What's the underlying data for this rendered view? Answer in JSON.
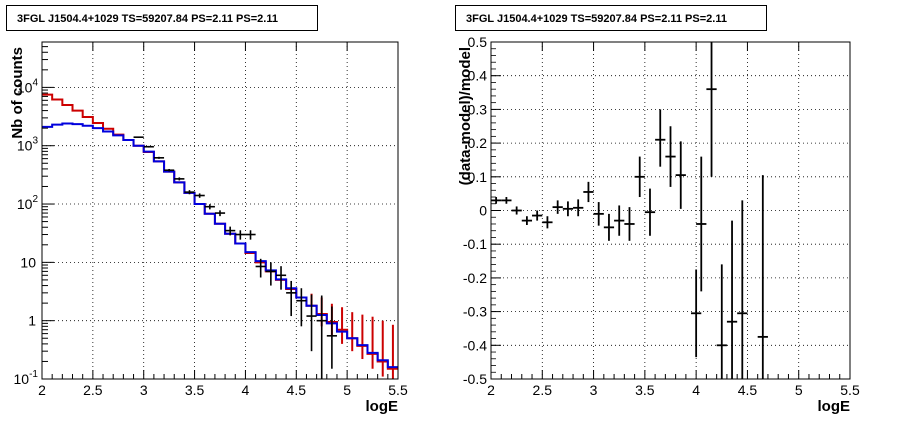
{
  "panels": {
    "left": {
      "title": "3FGL J1504.4+1029 TS=59207.84 PS=2.11 PS=2.11"
    },
    "right": {
      "title": "3FGL J1504.4+1029 TS=59207.84 PS=2.11 PS=2.11"
    }
  },
  "colors": {
    "data": "#000000",
    "model_red": "#cc0000",
    "model_blue": "#0000dd",
    "grid": "#000000"
  },
  "chart_data": [
    {
      "type": "line",
      "xlabel": "logE",
      "ylabel": "Nb of counts",
      "xlim": [
        2,
        5.5
      ],
      "ylim": [
        0.1,
        60000
      ],
      "yscale": "log",
      "grid": true,
      "x_ticks": [
        "2",
        "2.5",
        "3",
        "3.5",
        "4",
        "4.5",
        "5",
        "5.5"
      ],
      "y_ticks": [
        {
          "v": 0.1,
          "label": "10^-1"
        },
        {
          "v": 1,
          "label": "1"
        },
        {
          "v": 10,
          "label": "10"
        },
        {
          "v": 100,
          "label": "10^2"
        },
        {
          "v": 1000,
          "label": "10^3"
        },
        {
          "v": 10000,
          "label": "10^4"
        }
      ],
      "bin_edges": [
        2.0,
        2.1,
        2.2,
        2.3,
        2.4,
        2.5,
        2.6,
        2.7,
        2.8,
        2.9,
        3.0,
        3.1,
        3.2,
        3.3,
        3.4,
        3.5,
        3.6,
        3.7,
        3.8,
        3.9,
        4.0,
        4.1,
        4.2,
        4.3,
        4.4,
        4.5,
        4.6,
        4.7,
        4.8,
        4.9,
        5.0,
        5.1,
        5.2,
        5.3,
        5.4,
        5.5
      ],
      "series": [
        {
          "name": "",
          "style": "model_red",
          "values": [
            7500,
            6200,
            5000,
            4000,
            3100,
            2450,
            1950,
            1550,
            1250,
            1000,
            780,
            540,
            360,
            235,
            155,
            100,
            68,
            46,
            31,
            21,
            14.5,
            10,
            7,
            5,
            3.5,
            2.5,
            1.8,
            1.3,
            0.95,
            0.7,
            0.5,
            0.37,
            0.27,
            0.2,
            0.15
          ],
          "err_lo": [
            0,
            0,
            0,
            0,
            0,
            0,
            0,
            0,
            0,
            0,
            0,
            0,
            0,
            0,
            0,
            0,
            0,
            0,
            0,
            0,
            0,
            0,
            0,
            0,
            0,
            0,
            0,
            0.5,
            0.4,
            0.3,
            0.2,
            0.15,
            0.12,
            0.09,
            0.07
          ],
          "err_hi": [
            0,
            0,
            0,
            0,
            0,
            0,
            0,
            0,
            0,
            0,
            0,
            0,
            0,
            0,
            0,
            0,
            0,
            0,
            0,
            0,
            0,
            0,
            0,
            0,
            0,
            0,
            1.1,
            1.2,
            1.0,
            1.0,
            0.9,
            0.9,
            0.9,
            0.8,
            0.7
          ]
        },
        {
          "name": "",
          "style": "model_blue",
          "values": [
            2100,
            2300,
            2400,
            2350,
            2200,
            2000,
            1750,
            1500,
            1250,
            1000,
            790,
            540,
            360,
            235,
            155,
            100,
            68,
            46,
            31,
            21,
            15,
            10.5,
            7.3,
            5.1,
            3.6,
            2.5,
            1.8,
            1.25,
            0.9,
            0.65,
            0.5,
            0.38,
            0.28,
            0.21,
            0.16
          ]
        }
      ],
      "data_points": {
        "x": [
          2.95,
          3.05,
          3.15,
          3.25,
          3.35,
          3.45,
          3.55,
          3.65,
          3.75,
          3.85,
          3.95,
          4.05,
          4.15,
          4.25,
          4.35,
          4.45,
          4.55,
          4.65,
          4.75,
          4.85
        ],
        "y": [
          1400,
          960,
          620,
          380,
          270,
          160,
          140,
          90,
          70,
          35,
          30,
          30,
          8.5,
          7,
          6,
          3,
          2.2,
          1.2,
          1,
          0.55
        ],
        "err_lo": [
          38,
          31,
          25,
          19,
          16,
          13,
          12,
          9,
          8,
          6,
          5.5,
          5.5,
          3,
          3,
          2.6,
          1.8,
          1.4,
          0.9,
          0.9,
          0.4
        ],
        "err_hi": [
          38,
          31,
          25,
          19,
          16,
          13,
          12,
          9,
          8,
          6,
          5.5,
          5.5,
          3,
          3,
          2.6,
          1.8,
          1.4,
          1.6,
          1.7,
          1.2
        ]
      }
    },
    {
      "type": "scatter",
      "xlabel": "logE",
      "ylabel": "(data-model)/model",
      "xlim": [
        2,
        5.5
      ],
      "ylim": [
        -0.5,
        0.5
      ],
      "grid": true,
      "x_ticks": [
        "2",
        "2.5",
        "3",
        "3.5",
        "4",
        "4.5",
        "5",
        "5.5"
      ],
      "y_ticks": [
        "-0.5",
        "-0.4",
        "-0.3",
        "-0.2",
        "-0.1",
        "0",
        "0.1",
        "0.2",
        "0.3",
        "0.4",
        "0.5"
      ],
      "points": {
        "x": [
          2.05,
          2.15,
          2.25,
          2.35,
          2.45,
          2.55,
          2.65,
          2.75,
          2.85,
          2.95,
          3.05,
          3.15,
          3.25,
          3.35,
          3.45,
          3.55,
          3.65,
          3.75,
          3.85,
          4.0,
          4.05,
          4.15,
          4.25,
          4.35,
          4.45,
          4.65
        ],
        "y": [
          0.03,
          0.03,
          0.0,
          -0.03,
          -0.015,
          -0.035,
          0.01,
          0.005,
          0.008,
          0.055,
          -0.01,
          -0.05,
          -0.03,
          -0.04,
          0.1,
          -0.005,
          0.21,
          0.16,
          0.105,
          -0.305,
          -0.04,
          0.36,
          -0.4,
          -0.33,
          -0.305,
          -0.375
        ],
        "xerr": [
          0.05,
          0.05,
          0.05,
          0.05,
          0.05,
          0.05,
          0.05,
          0.05,
          0.05,
          0.05,
          0.05,
          0.05,
          0.05,
          0.05,
          0.05,
          0.05,
          0.05,
          0.05,
          0.05,
          0.05,
          0.05,
          0.05,
          0.05,
          0.05,
          0.05,
          0.05
        ],
        "yerr_lo": [
          0.01,
          0.01,
          0.012,
          0.013,
          0.015,
          0.018,
          0.02,
          0.022,
          0.025,
          0.03,
          0.035,
          0.04,
          0.045,
          0.05,
          0.06,
          0.07,
          0.08,
          0.09,
          0.1,
          0.13,
          0.2,
          0.26,
          0.1,
          0.17,
          0.195,
          0.125
        ],
        "yerr_hi": [
          0.01,
          0.01,
          0.012,
          0.013,
          0.015,
          0.018,
          0.02,
          0.022,
          0.025,
          0.03,
          0.035,
          0.04,
          0.045,
          0.05,
          0.06,
          0.07,
          0.09,
          0.09,
          0.1,
          0.13,
          0.2,
          0.14,
          0.24,
          0.3,
          0.335,
          0.48
        ]
      }
    }
  ]
}
